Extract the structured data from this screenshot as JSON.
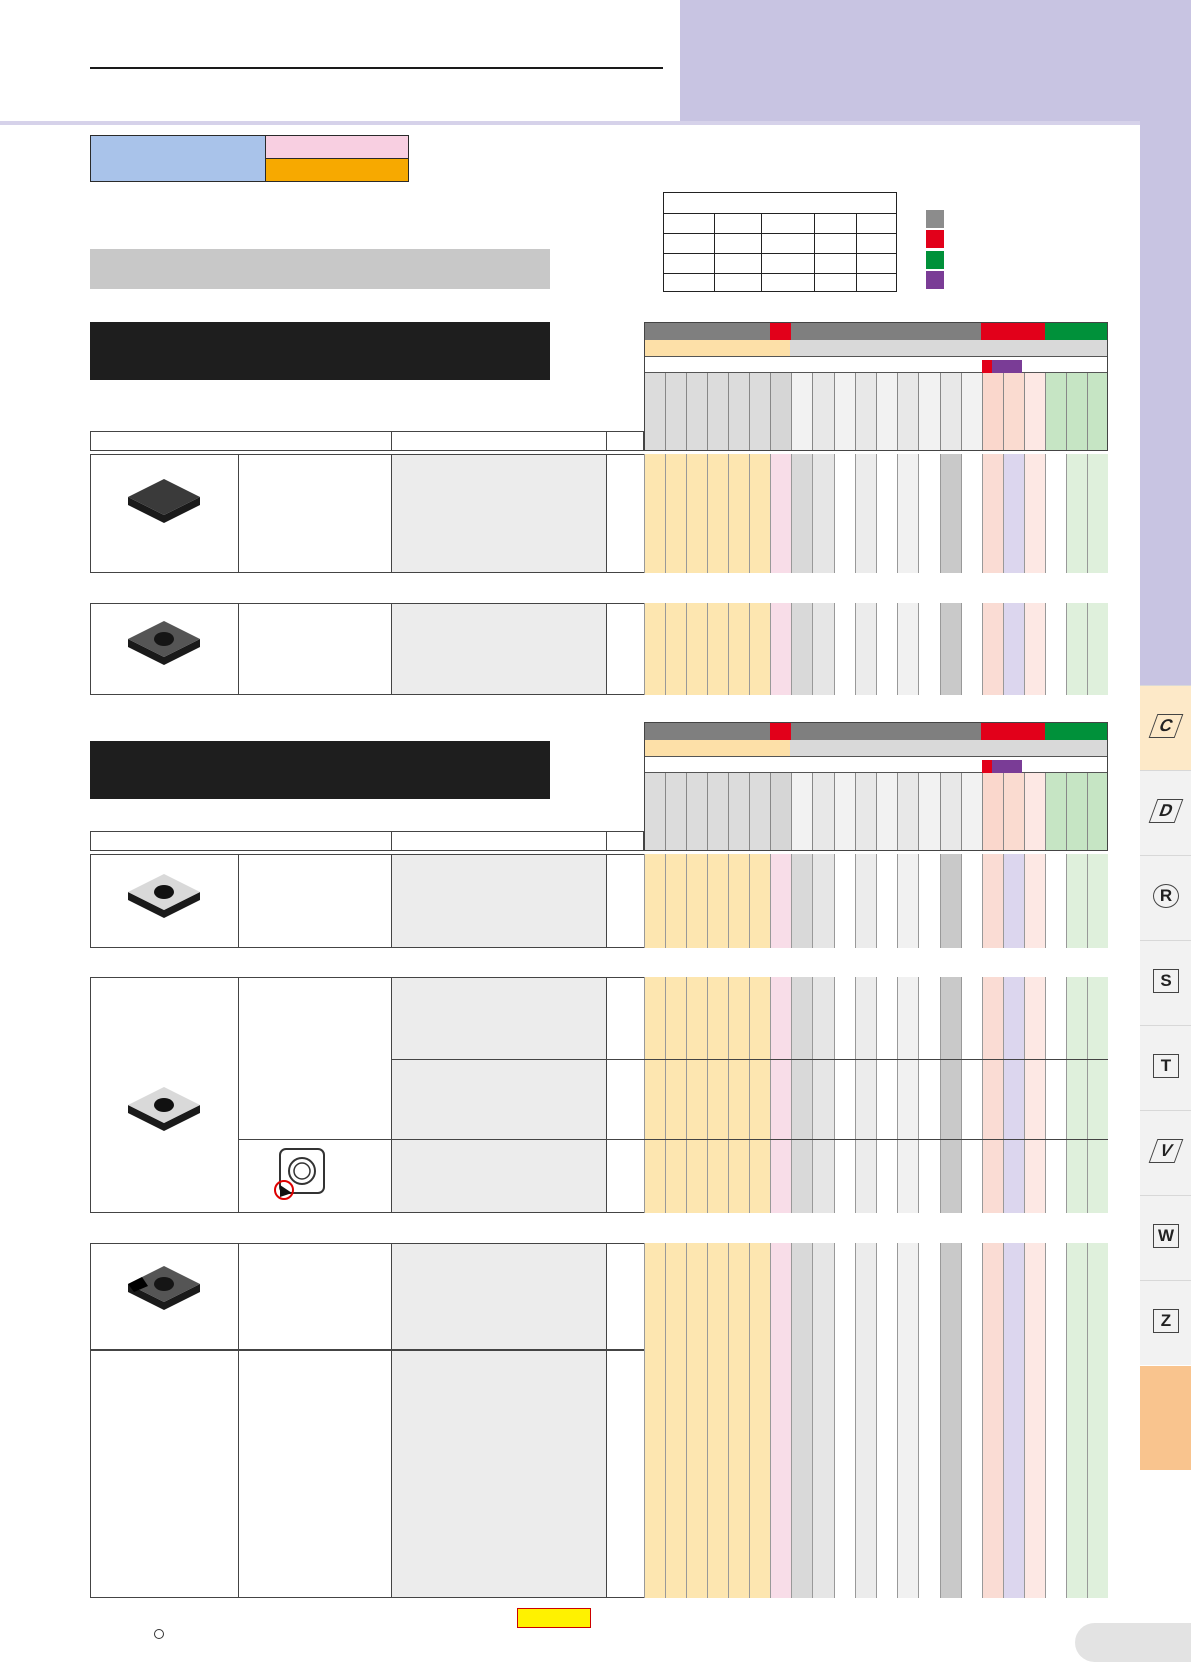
{
  "header": {
    "title": "",
    "subtitle": ""
  },
  "colors": {
    "band": "#c8c4e2",
    "legend_grey": "#8c8c8c",
    "legend_red": "#e2001a",
    "legend_green": "#00913a",
    "legend_purple": "#7a3c96",
    "orange_col": "#fde6b0",
    "grey_col": "#e6e6e6",
    "pink_col": "#f8dde8",
    "lavender_col": "#dcd6ee",
    "red_col": "#fadcd4",
    "green_col": "#dff0dc",
    "tab_bg": "#f2f2f2",
    "tab_active": "#fde9c8"
  },
  "legend": {
    "items": [
      "grey",
      "red",
      "green",
      "purple"
    ]
  },
  "side_tabs": [
    {
      "label": "C",
      "icon": "rhombus-80-icon"
    },
    {
      "label": "D",
      "icon": "rhombus-55-icon"
    },
    {
      "label": "R",
      "icon": "round-insert-icon"
    },
    {
      "label": "S",
      "icon": "square-insert-icon"
    },
    {
      "label": "T",
      "icon": "triangle-insert-icon"
    },
    {
      "label": "V",
      "icon": "rhombus-35-icon"
    },
    {
      "label": "W",
      "icon": "trigon-insert-icon"
    },
    {
      "label": "Z",
      "icon": "special-insert-icon"
    }
  ],
  "sections": [
    {
      "id": "section-1",
      "products": [
        {
          "id": "cnga-negative-insert",
          "icon": "negative-insert-icon"
        },
        {
          "id": "cnmg-holed-insert",
          "icon": "holed-insert-icon"
        }
      ]
    },
    {
      "id": "section-2",
      "products": [
        {
          "id": "ccmw-positive-insert",
          "icon": "positive-insert-icon"
        },
        {
          "id": "ccgt-insert-group",
          "icon": "positive-insert-icon",
          "subicon": "edge-detail-icon"
        },
        {
          "id": "ccmt-cbn-insert",
          "icon": "tipped-insert-icon"
        },
        {
          "id": "empty-row",
          "icon": ""
        }
      ]
    }
  ]
}
